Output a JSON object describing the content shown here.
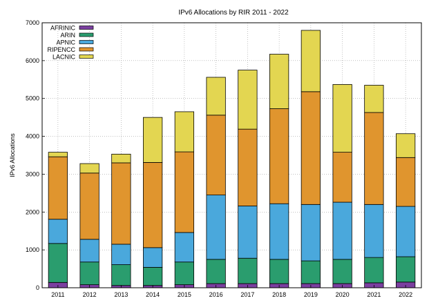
{
  "chart_data": {
    "type": "bar",
    "stacked": true,
    "title": "IPv6 Allocations by RIR 2011 - 2022",
    "xlabel": "",
    "ylabel": "IPv6 Allocations",
    "ylim": [
      0,
      7000
    ],
    "yticks": [
      0,
      1000,
      2000,
      3000,
      4000,
      5000,
      6000,
      7000
    ],
    "grid": true,
    "legend_position": "top-left",
    "categories": [
      "2011",
      "2012",
      "2013",
      "2014",
      "2015",
      "2016",
      "2017",
      "2018",
      "2019",
      "2020",
      "2021",
      "2022"
    ],
    "series": [
      {
        "name": "AFRINIC",
        "color": "#7b3fa0",
        "values": [
          140,
          80,
          60,
          60,
          80,
          110,
          110,
          110,
          110,
          110,
          130,
          150
        ]
      },
      {
        "name": "ARIN",
        "color": "#2a9d6e",
        "values": [
          1030,
          600,
          550,
          480,
          600,
          640,
          670,
          640,
          600,
          640,
          670,
          670
        ]
      },
      {
        "name": "APNIC",
        "color": "#4aa8dc",
        "values": [
          640,
          600,
          540,
          520,
          780,
          1700,
          1380,
          1470,
          1490,
          1510,
          1400,
          1330
        ]
      },
      {
        "name": "RIPENCC",
        "color": "#e0952e",
        "values": [
          1650,
          1750,
          2150,
          2250,
          2130,
          2110,
          2030,
          2510,
          2980,
          1320,
          2430,
          1290
        ]
      },
      {
        "name": "LACNIC",
        "color": "#e3d651",
        "values": [
          120,
          250,
          230,
          1190,
          1060,
          1000,
          1560,
          1440,
          1620,
          1790,
          720,
          630
        ]
      }
    ]
  }
}
